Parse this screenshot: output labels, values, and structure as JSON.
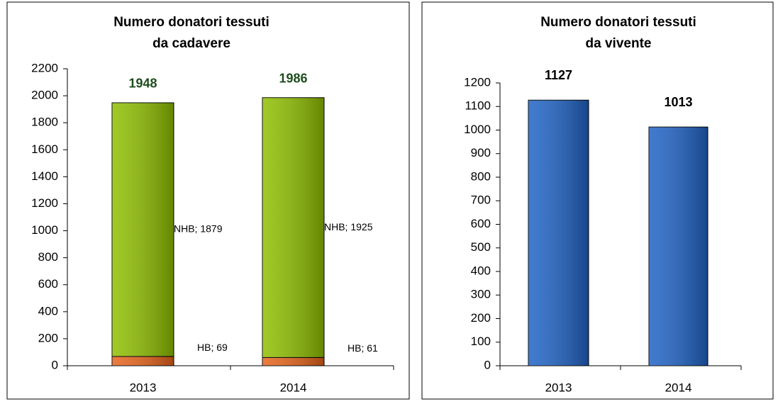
{
  "chart_data": [
    {
      "type": "stacked_bar",
      "title": [
        "Numero donatori tessuti",
        "da cadavere"
      ],
      "categories": [
        "2013",
        "2014"
      ],
      "series": [
        {
          "name": "HB",
          "color": "#e8641b",
          "values": [
            69,
            61
          ],
          "value_labels": [
            "HB; 69",
            "HB; 61"
          ]
        },
        {
          "name": "NHB",
          "color": "#8fbf00",
          "values": [
            1879,
            1925
          ],
          "value_labels": [
            "NHB; 1879",
            "NHB; 1925"
          ]
        }
      ],
      "totals": [
        1948,
        1986
      ],
      "ylim": [
        0,
        2200
      ],
      "yticks": [
        0,
        200,
        400,
        600,
        800,
        1000,
        1200,
        1400,
        1600,
        1800,
        2000,
        2200
      ]
    },
    {
      "type": "bar",
      "title": [
        "Numero donatori tessuti",
        "da vivente"
      ],
      "categories": [
        "2013",
        "2014"
      ],
      "values": [
        1127,
        1013
      ],
      "color": "#1f63c6",
      "ylim": [
        0,
        1200
      ],
      "yticks": [
        0,
        100,
        200,
        300,
        400,
        500,
        600,
        700,
        800,
        900,
        1000,
        1100,
        1200
      ]
    }
  ]
}
